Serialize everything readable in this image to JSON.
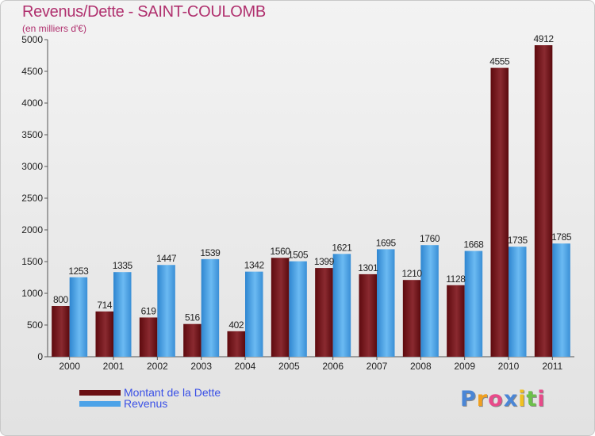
{
  "chart_data": {
    "type": "bar",
    "title": "Revenus/Dette - SAINT-COULOMB",
    "subtitle": "(en milliers d'€)",
    "categories": [
      "2000",
      "2001",
      "2002",
      "2003",
      "2004",
      "2005",
      "2006",
      "2007",
      "2008",
      "2009",
      "2010",
      "2011"
    ],
    "series": [
      {
        "name": "Montant de la Dette",
        "color": "#7a1a1f",
        "values": [
          800,
          714,
          619,
          516,
          402,
          1560,
          1399,
          1301,
          1210,
          1128,
          4555,
          4912
        ]
      },
      {
        "name": "Revenus",
        "color": "#4da3e8",
        "values": [
          1253,
          1335,
          1447,
          1539,
          1342,
          1505,
          1621,
          1695,
          1760,
          1668,
          1735,
          1785
        ]
      }
    ],
    "yticks": [
      0,
      500,
      1000,
      1500,
      2000,
      2500,
      3000,
      3500,
      4000,
      4500,
      5000
    ],
    "ylim": [
      0,
      5000
    ],
    "grid": false,
    "legend_position": "bottom-left"
  },
  "logo": {
    "letters": [
      {
        "ch": "P",
        "color": "#4a86d6"
      },
      {
        "ch": "r",
        "color": "#f0a020"
      },
      {
        "ch": "o",
        "color": "#e84a8a"
      },
      {
        "ch": "x",
        "color": "#4a86d6"
      },
      {
        "ch": "i",
        "color": "#f0c020"
      },
      {
        "ch": "t",
        "color": "#6cc04a"
      },
      {
        "ch": "i",
        "color": "#e84a8a"
      }
    ]
  }
}
